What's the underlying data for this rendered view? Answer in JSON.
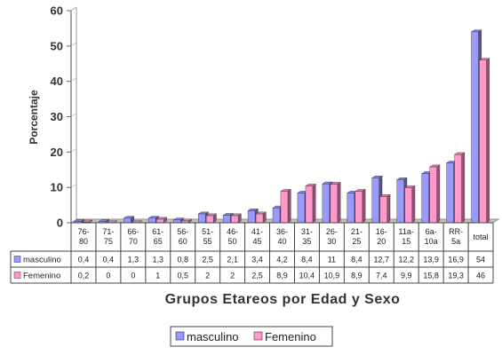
{
  "chart_data": {
    "type": "bar",
    "title": "",
    "xlabel": "Grupos Etareos por Edad y Sexo",
    "ylabel": "Porcentaje",
    "ylim": [
      0,
      60
    ],
    "yticks": [
      0,
      10,
      20,
      30,
      40,
      50,
      60
    ],
    "grid": false,
    "legend_position": "bottom",
    "categories": [
      "76-\n80",
      "71-\n75",
      "66-\n70",
      "61-\n65",
      "56-\n60",
      "51-\n55",
      "46-\n50",
      "41-\n45",
      "36-\n40",
      "31-\n35",
      "26-\n30",
      "21-\n25",
      "16-\n20",
      "11a-\n15",
      "6a-\n10a",
      "RR-\n5a",
      "total"
    ],
    "series": [
      {
        "name": "masculino",
        "color": "#9999ff",
        "values": [
          0.4,
          0.4,
          1.3,
          1.3,
          0.8,
          2.5,
          2.1,
          3.4,
          4.2,
          8.4,
          11,
          8.4,
          12.7,
          12.2,
          13.9,
          16.9,
          54
        ],
        "labels": [
          "0,4",
          "0,4",
          "1,3",
          "1,3",
          "0,8",
          "2,5",
          "2,1",
          "3,4",
          "4,2",
          "8,4",
          "11",
          "8,4",
          "12,7",
          "12,2",
          "13,9",
          "16,9",
          "54"
        ]
      },
      {
        "name": "Femenino",
        "color": "#ff99cc",
        "values": [
          0.2,
          0,
          0,
          1,
          0.5,
          2,
          2,
          2.5,
          8.9,
          10.4,
          10.9,
          8.9,
          7.4,
          9.9,
          15.8,
          19.3,
          46
        ],
        "labels": [
          "0,2",
          "0",
          "0",
          "1",
          "0,5",
          "2",
          "2",
          "2,5",
          "8,9",
          "10,4",
          "10,9",
          "8,9",
          "7,4",
          "9,9",
          "15,8",
          "19,3",
          "46"
        ]
      }
    ]
  }
}
